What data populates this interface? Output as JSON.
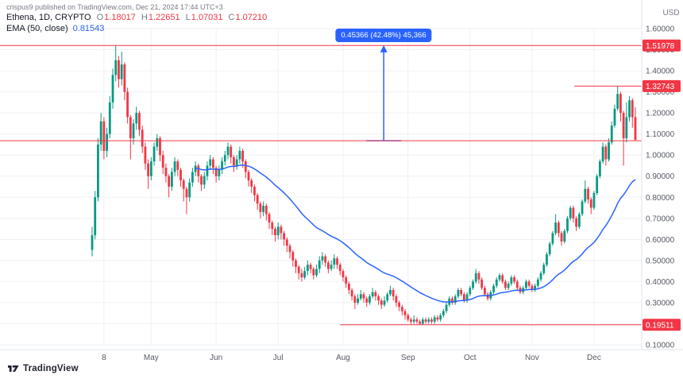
{
  "page": {
    "watermark": "crispus9 published on TradingView.com, Dec 21, 2024 17:44 UTC+3",
    "footer_brand": "TradingView"
  },
  "legend": {
    "symbol": "Ethena, 1D, CRYPTO",
    "ohlc": [
      {
        "k": "O",
        "v": "1.18017"
      },
      {
        "k": "H",
        "v": "1.22651"
      },
      {
        "k": "L",
        "v": "1.07031"
      },
      {
        "k": "C",
        "v": "1.07210"
      }
    ],
    "indicator": {
      "name": "EMA (50, close)",
      "value": "0.81543"
    }
  },
  "axis": {
    "currency": "USD"
  },
  "chart_data": {
    "type": "candlestick",
    "title": "Ethena / ENA, 1D, CRYPTO",
    "ylabel": "USD",
    "y_axis": {
      "top": 1.6,
      "bottom": 0.1,
      "tick_step": 0.1
    },
    "y_ticks": [
      {
        "v": 0.1,
        "label": "0.10000"
      },
      {
        "v": 0.2,
        "label": "0.20000"
      },
      {
        "v": 0.3,
        "label": "0.30000"
      },
      {
        "v": 0.4,
        "label": "0.40000"
      },
      {
        "v": 0.5,
        "label": "0.50000"
      },
      {
        "v": 0.6,
        "label": "0.60000"
      },
      {
        "v": 0.7,
        "label": "0.70000"
      },
      {
        "v": 0.8,
        "label": "0.80000"
      },
      {
        "v": 0.9,
        "label": "0.90000"
      },
      {
        "v": 1.0,
        "label": "1.00000"
      },
      {
        "v": 1.1,
        "label": "1.10000"
      },
      {
        "v": 1.2,
        "label": "1.20000"
      },
      {
        "v": 1.3,
        "label": "1.30000"
      },
      {
        "v": 1.4,
        "label": "1.40000"
      },
      {
        "v": 1.5,
        "label": "1.50000"
      },
      {
        "v": 1.6,
        "label": "1.60000"
      }
    ],
    "x_ticks": [
      {
        "index": 4,
        "label": "8"
      },
      {
        "index": 20,
        "label": "May"
      },
      {
        "index": 42,
        "label": "Jun"
      },
      {
        "index": 63,
        "label": "Jul"
      },
      {
        "index": 85,
        "label": "Aug"
      },
      {
        "index": 107,
        "label": "Sep"
      },
      {
        "index": 128,
        "label": "Oct"
      },
      {
        "index": 149,
        "label": "Nov"
      },
      {
        "index": 170,
        "label": "Dec"
      }
    ],
    "price_lines": [
      {
        "price": 1.51978,
        "label": "1.51978",
        "x1": 0.0,
        "x2": 1.0,
        "badge": true
      },
      {
        "price": 1.32743,
        "label": "1.32743",
        "x1": 0.895,
        "x2": 1.0,
        "badge": true
      },
      {
        "price": 0.19511,
        "label": "0.19511",
        "x1": 0.53,
        "x2": 1.0,
        "badge": true
      },
      {
        "price": 1.0679,
        "label": "",
        "x1": 0.0,
        "x2": 1.0,
        "badge": false
      }
    ],
    "measure": {
      "label": "0.45366 (42.48%) 45,366",
      "value": "0.45366",
      "percent": "42.48%",
      "amount": "45,366",
      "from_price": 1.0679,
      "to_price": 1.52156,
      "x_frac": 0.598
    },
    "ema": {
      "period": 50,
      "source": "close",
      "last_value": 0.81543,
      "plot_period": 35,
      "plot_start_index": 35
    },
    "colors": {
      "up": "#089981",
      "down": "#F23645",
      "ema": "#2962FF",
      "line": "#F23645",
      "measure": "#2962FF",
      "grid": "#EEF0F3"
    },
    "candles": [
      [
        0.55,
        0.66,
        0.52,
        0.62
      ],
      [
        0.62,
        0.83,
        0.6,
        0.8
      ],
      [
        0.8,
        1.08,
        0.78,
        1.05
      ],
      [
        1.05,
        1.2,
        1.02,
        1.16
      ],
      [
        1.16,
        1.18,
        0.98,
        1.02
      ],
      [
        1.02,
        1.13,
        0.99,
        1.1
      ],
      [
        1.1,
        1.28,
        1.08,
        1.25
      ],
      [
        1.25,
        1.41,
        1.22,
        1.38
      ],
      [
        1.38,
        1.51978,
        1.35,
        1.45
      ],
      [
        1.45,
        1.47,
        1.32,
        1.36
      ],
      [
        1.36,
        1.49,
        1.33,
        1.43
      ],
      [
        1.43,
        1.44,
        1.26,
        1.3
      ],
      [
        1.3,
        1.32,
        1.15,
        1.18
      ],
      [
        1.18,
        1.19,
        0.98,
        1.08
      ],
      [
        1.08,
        1.17,
        1.05,
        1.15
      ],
      [
        1.15,
        1.23,
        1.12,
        1.2
      ],
      [
        1.2,
        1.21,
        1.09,
        1.12
      ],
      [
        1.12,
        1.14,
        1.01,
        1.04
      ],
      [
        1.04,
        1.06,
        0.93,
        0.96
      ],
      [
        0.96,
        0.98,
        0.84,
        0.9
      ],
      [
        0.9,
        0.99,
        0.88,
        0.97
      ],
      [
        0.97,
        1.06,
        0.95,
        1.04
      ],
      [
        1.04,
        1.1,
        1.02,
        1.08
      ],
      [
        1.08,
        1.09,
        0.97,
        1.0
      ],
      [
        1.0,
        1.02,
        0.91,
        0.94
      ],
      [
        0.94,
        0.96,
        0.87,
        0.9
      ],
      [
        0.9,
        0.91,
        0.8,
        0.85
      ],
      [
        0.85,
        0.94,
        0.83,
        0.92
      ],
      [
        0.92,
        0.99,
        0.9,
        0.97
      ],
      [
        0.97,
        0.98,
        0.9,
        0.93
      ],
      [
        0.93,
        0.94,
        0.85,
        0.88
      ],
      [
        0.88,
        0.89,
        0.78,
        0.84
      ],
      [
        0.84,
        0.85,
        0.72,
        0.8
      ],
      [
        0.8,
        0.89,
        0.78,
        0.87
      ],
      [
        0.87,
        0.94,
        0.85,
        0.92
      ],
      [
        0.92,
        0.97,
        0.9,
        0.95
      ],
      [
        0.95,
        0.96,
        0.87,
        0.9
      ],
      [
        0.9,
        0.91,
        0.83,
        0.86
      ],
      [
        0.86,
        0.92,
        0.84,
        0.9
      ],
      [
        0.9,
        0.97,
        0.88,
        0.95
      ],
      [
        0.95,
        1.0,
        0.93,
        0.98
      ],
      [
        0.98,
        0.99,
        0.91,
        0.94
      ],
      [
        0.94,
        0.95,
        0.87,
        0.9
      ],
      [
        0.9,
        0.95,
        0.88,
        0.93
      ],
      [
        0.93,
        0.99,
        0.91,
        0.97
      ],
      [
        0.97,
        1.02,
        0.95,
        1.0
      ],
      [
        1.0,
        1.06,
        0.98,
        1.04
      ],
      [
        1.04,
        1.05,
        0.96,
        0.99
      ],
      [
        0.99,
        1.0,
        0.92,
        0.95
      ],
      [
        0.95,
        1.0,
        0.93,
        0.98
      ],
      [
        0.98,
        1.04,
        0.96,
        1.02
      ],
      [
        1.02,
        1.03,
        0.94,
        0.97
      ],
      [
        0.97,
        0.98,
        0.89,
        0.92
      ],
      [
        0.92,
        0.93,
        0.85,
        0.88
      ],
      [
        0.88,
        0.89,
        0.82,
        0.85
      ],
      [
        0.85,
        0.86,
        0.78,
        0.81
      ],
      [
        0.81,
        0.82,
        0.74,
        0.77
      ],
      [
        0.77,
        0.78,
        0.7,
        0.73
      ],
      [
        0.73,
        0.78,
        0.71,
        0.76
      ],
      [
        0.76,
        0.77,
        0.69,
        0.72
      ],
      [
        0.72,
        0.73,
        0.65,
        0.68
      ],
      [
        0.68,
        0.69,
        0.62,
        0.65
      ],
      [
        0.65,
        0.66,
        0.59,
        0.62
      ],
      [
        0.62,
        0.68,
        0.6,
        0.66
      ],
      [
        0.66,
        0.67,
        0.6,
        0.63
      ],
      [
        0.63,
        0.64,
        0.57,
        0.6
      ],
      [
        0.6,
        0.61,
        0.54,
        0.57
      ],
      [
        0.57,
        0.58,
        0.51,
        0.54
      ],
      [
        0.54,
        0.55,
        0.47,
        0.5
      ],
      [
        0.5,
        0.51,
        0.44,
        0.47
      ],
      [
        0.47,
        0.48,
        0.41,
        0.44
      ],
      [
        0.44,
        0.46,
        0.4,
        0.42
      ],
      [
        0.42,
        0.47,
        0.41,
        0.45
      ],
      [
        0.45,
        0.5,
        0.43,
        0.48
      ],
      [
        0.48,
        0.49,
        0.44,
        0.46
      ],
      [
        0.46,
        0.47,
        0.41,
        0.43
      ],
      [
        0.43,
        0.48,
        0.42,
        0.46
      ],
      [
        0.46,
        0.52,
        0.44,
        0.5
      ],
      [
        0.5,
        0.54,
        0.48,
        0.52
      ],
      [
        0.52,
        0.53,
        0.47,
        0.49
      ],
      [
        0.49,
        0.5,
        0.44,
        0.46
      ],
      [
        0.46,
        0.5,
        0.45,
        0.48
      ],
      [
        0.48,
        0.53,
        0.46,
        0.51
      ],
      [
        0.51,
        0.52,
        0.46,
        0.48
      ],
      [
        0.48,
        0.49,
        0.43,
        0.45
      ],
      [
        0.45,
        0.46,
        0.4,
        0.42
      ],
      [
        0.42,
        0.43,
        0.37,
        0.39
      ],
      [
        0.39,
        0.4,
        0.34,
        0.36
      ],
      [
        0.36,
        0.37,
        0.31,
        0.33
      ],
      [
        0.33,
        0.34,
        0.27,
        0.3
      ],
      [
        0.3,
        0.34,
        0.29,
        0.32
      ],
      [
        0.32,
        0.36,
        0.31,
        0.34
      ],
      [
        0.34,
        0.35,
        0.3,
        0.32
      ],
      [
        0.32,
        0.33,
        0.28,
        0.3
      ],
      [
        0.3,
        0.34,
        0.29,
        0.33
      ],
      [
        0.33,
        0.37,
        0.32,
        0.35
      ],
      [
        0.35,
        0.36,
        0.31,
        0.33
      ],
      [
        0.33,
        0.34,
        0.29,
        0.31
      ],
      [
        0.31,
        0.32,
        0.27,
        0.29
      ],
      [
        0.29,
        0.33,
        0.28,
        0.31
      ],
      [
        0.31,
        0.35,
        0.3,
        0.34
      ],
      [
        0.34,
        0.38,
        0.33,
        0.36
      ],
      [
        0.36,
        0.37,
        0.31,
        0.33
      ],
      [
        0.33,
        0.34,
        0.28,
        0.3
      ],
      [
        0.3,
        0.31,
        0.26,
        0.28
      ],
      [
        0.28,
        0.29,
        0.24,
        0.26
      ],
      [
        0.26,
        0.27,
        0.22,
        0.24
      ],
      [
        0.24,
        0.25,
        0.21,
        0.22
      ],
      [
        0.22,
        0.23,
        0.198,
        0.21
      ],
      [
        0.21,
        0.24,
        0.2,
        0.22
      ],
      [
        0.22,
        0.23,
        0.2,
        0.21
      ],
      [
        0.21,
        0.22,
        0.19511,
        0.2
      ],
      [
        0.2,
        0.23,
        0.196,
        0.22
      ],
      [
        0.22,
        0.23,
        0.2,
        0.21
      ],
      [
        0.21,
        0.23,
        0.2,
        0.22
      ],
      [
        0.22,
        0.23,
        0.2,
        0.21
      ],
      [
        0.21,
        0.24,
        0.2,
        0.23
      ],
      [
        0.23,
        0.24,
        0.21,
        0.22
      ],
      [
        0.22,
        0.25,
        0.21,
        0.24
      ],
      [
        0.24,
        0.27,
        0.23,
        0.26
      ],
      [
        0.26,
        0.3,
        0.25,
        0.29
      ],
      [
        0.29,
        0.33,
        0.28,
        0.32
      ],
      [
        0.32,
        0.33,
        0.29,
        0.3
      ],
      [
        0.3,
        0.34,
        0.29,
        0.33
      ],
      [
        0.33,
        0.37,
        0.32,
        0.36
      ],
      [
        0.36,
        0.37,
        0.33,
        0.34
      ],
      [
        0.34,
        0.35,
        0.3,
        0.31
      ],
      [
        0.31,
        0.35,
        0.3,
        0.34
      ],
      [
        0.34,
        0.38,
        0.33,
        0.37
      ],
      [
        0.37,
        0.41,
        0.36,
        0.4
      ],
      [
        0.4,
        0.46,
        0.39,
        0.44
      ],
      [
        0.44,
        0.45,
        0.39,
        0.41
      ],
      [
        0.41,
        0.42,
        0.36,
        0.37
      ],
      [
        0.37,
        0.38,
        0.33,
        0.34
      ],
      [
        0.34,
        0.35,
        0.31,
        0.32
      ],
      [
        0.32,
        0.36,
        0.31,
        0.35
      ],
      [
        0.35,
        0.39,
        0.34,
        0.38
      ],
      [
        0.38,
        0.42,
        0.37,
        0.41
      ],
      [
        0.41,
        0.44,
        0.4,
        0.43
      ],
      [
        0.43,
        0.44,
        0.39,
        0.4
      ],
      [
        0.4,
        0.41,
        0.36,
        0.37
      ],
      [
        0.37,
        0.4,
        0.36,
        0.39
      ],
      [
        0.39,
        0.43,
        0.38,
        0.42
      ],
      [
        0.42,
        0.43,
        0.39,
        0.4
      ],
      [
        0.4,
        0.41,
        0.36,
        0.37
      ],
      [
        0.37,
        0.38,
        0.34,
        0.35
      ],
      [
        0.35,
        0.38,
        0.34,
        0.37
      ],
      [
        0.37,
        0.41,
        0.36,
        0.4
      ],
      [
        0.4,
        0.41,
        0.37,
        0.38
      ],
      [
        0.38,
        0.39,
        0.35,
        0.36
      ],
      [
        0.36,
        0.39,
        0.35,
        0.38
      ],
      [
        0.38,
        0.42,
        0.37,
        0.41
      ],
      [
        0.41,
        0.45,
        0.4,
        0.44
      ],
      [
        0.44,
        0.49,
        0.43,
        0.48
      ],
      [
        0.48,
        0.54,
        0.47,
        0.53
      ],
      [
        0.53,
        0.59,
        0.52,
        0.58
      ],
      [
        0.58,
        0.64,
        0.57,
        0.63
      ],
      [
        0.63,
        0.72,
        0.62,
        0.68
      ],
      [
        0.68,
        0.69,
        0.61,
        0.63
      ],
      [
        0.63,
        0.64,
        0.57,
        0.59
      ],
      [
        0.59,
        0.65,
        0.58,
        0.64
      ],
      [
        0.64,
        0.71,
        0.63,
        0.7
      ],
      [
        0.7,
        0.76,
        0.69,
        0.75
      ],
      [
        0.75,
        0.76,
        0.68,
        0.7
      ],
      [
        0.7,
        0.71,
        0.64,
        0.66
      ],
      [
        0.66,
        0.73,
        0.65,
        0.72
      ],
      [
        0.72,
        0.79,
        0.71,
        0.78
      ],
      [
        0.78,
        0.88,
        0.77,
        0.84
      ],
      [
        0.84,
        0.85,
        0.77,
        0.79
      ],
      [
        0.79,
        0.8,
        0.72,
        0.75
      ],
      [
        0.75,
        0.83,
        0.74,
        0.82
      ],
      [
        0.82,
        0.91,
        0.81,
        0.9
      ],
      [
        0.9,
        0.98,
        0.89,
        0.97
      ],
      [
        0.97,
        1.06,
        0.96,
        1.04
      ],
      [
        1.04,
        1.05,
        0.95,
        0.98
      ],
      [
        0.98,
        1.08,
        0.97,
        1.06
      ],
      [
        1.06,
        1.16,
        1.05,
        1.14
      ],
      [
        1.14,
        1.24,
        1.13,
        1.22
      ],
      [
        1.22,
        1.32743,
        1.21,
        1.29
      ],
      [
        1.29,
        1.3,
        1.16,
        1.2
      ],
      [
        1.2,
        1.21,
        0.95,
        1.08
      ],
      [
        1.08,
        1.25,
        1.06,
        1.18
      ],
      [
        1.18,
        1.28,
        1.16,
        1.26
      ],
      [
        1.26,
        1.27,
        1.13,
        1.18
      ],
      [
        1.18017,
        1.22651,
        1.07031,
        1.0721
      ]
    ]
  }
}
